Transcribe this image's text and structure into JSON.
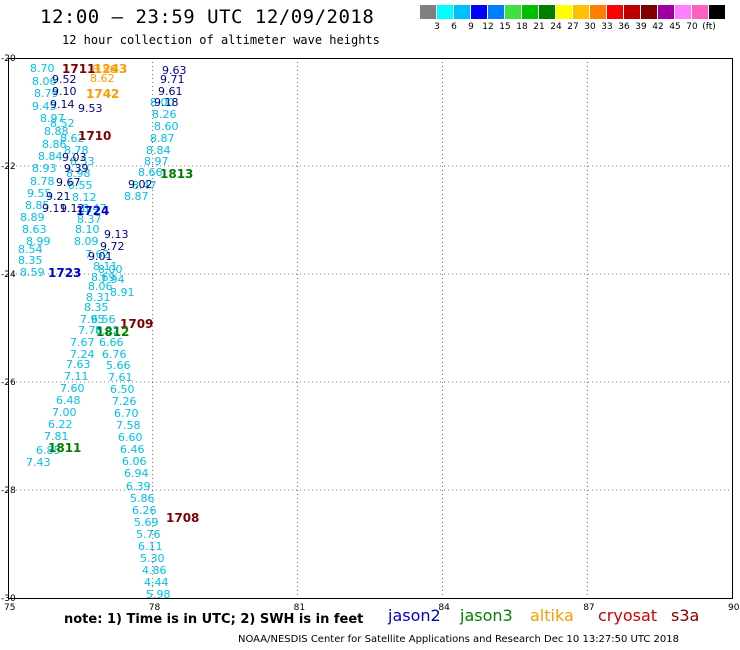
{
  "header": {
    "title": "12:00 – 23:59 UTC 12/09/2018",
    "subtitle": "12 hour collection of altimeter wave heights"
  },
  "legend": {
    "colors": [
      "#808080",
      "#00ffff",
      "#00bfff",
      "#0000ff",
      "#0080ff",
      "#40e040",
      "#00c000",
      "#008000",
      "#ffff00",
      "#ffc000",
      "#ff8000",
      "#ff0000",
      "#c00000",
      "#800000",
      "#a000a0",
      "#ff80ff",
      "#ff60c0",
      "#000000"
    ],
    "labels": [
      "3",
      "6",
      "9",
      "12",
      "15",
      "18",
      "21",
      "24",
      "27",
      "30",
      "33",
      "36",
      "39",
      "42",
      "45",
      "70",
      "(ft)"
    ]
  },
  "map": {
    "y_ticks": [
      "-20",
      "-22",
      "-24",
      "-26",
      "-28",
      "-30"
    ],
    "x_ticks": [
      "75",
      "78",
      "81",
      "84",
      "87",
      "90"
    ]
  },
  "tracks": [
    {
      "label": "1711",
      "color": "#800000"
    },
    {
      "label": "1742",
      "color": "#ff9900"
    },
    {
      "label": "1243",
      "color": "#ff9900"
    },
    {
      "label": "1710",
      "color": "#800000"
    },
    {
      "label": "1813",
      "color": "#008000"
    },
    {
      "label": "1724",
      "color": "#0000cc"
    },
    {
      "label": "1723",
      "color": "#0000cc"
    },
    {
      "label": "1709",
      "color": "#800000"
    },
    {
      "label": "1812",
      "color": "#008000"
    },
    {
      "label": "1811",
      "color": "#008000"
    },
    {
      "label": "1708",
      "color": "#800000"
    }
  ],
  "waves": {
    "cyan": [
      "8.70",
      "8.06",
      "8.79",
      "9.45",
      "8.97",
      "8.88",
      "8.86",
      "8.84",
      "8.93",
      "8.78",
      "9.55",
      "8.85",
      "8.89",
      "8.63",
      "8.99",
      "8.54",
      "8.35",
      "8.59",
      "8.52",
      "8.62",
      "8.78",
      "8.53",
      "8.98",
      "8.55",
      "8.12",
      "8.47",
      "8.37",
      "8.10",
      "8.09",
      "7.62",
      "8.11",
      "7.94",
      "8.91",
      "8.00",
      "8.69",
      "8.06",
      "8.31",
      "8.35",
      "7.95",
      "7.76",
      "7.67",
      "7.24",
      "7.63",
      "7.11",
      "7.60",
      "6.48",
      "7.00",
      "6.22",
      "7.81",
      "6.85",
      "7.43",
      "6.56",
      "8.22",
      "6.66",
      "6.76",
      "5.66",
      "7.61",
      "6.50",
      "7.26",
      "6.70",
      "7.58",
      "6.60",
      "6.46",
      "6.06",
      "6.94",
      "6.39",
      "5.86",
      "6.26",
      "5.69",
      "5.76",
      "6.11",
      "5.30",
      "4.86",
      "4.44",
      "5.98",
      "8.00",
      "8.26",
      "8.60",
      "8.87",
      "8.84",
      "8.97",
      "8.66",
      "8.47",
      "8.87"
    ],
    "navy": [
      "9.52",
      "9.10",
      "9.14",
      "9.53",
      "9.03",
      "9.39",
      "9.63",
      "9.71",
      "9.61",
      "9.18",
      "9.02",
      "9.13",
      "9.72",
      "9.01",
      "9.11",
      "9.12",
      "9.67",
      "9.21"
    ],
    "orange": [
      "8.62",
      "8.56"
    ]
  },
  "footer": {
    "note": "note: 1) Time is in UTC; 2) SWH is in feet",
    "satellites": [
      {
        "name": "jason2",
        "color": "#0000cc"
      },
      {
        "name": "jason3",
        "color": "#008000"
      },
      {
        "name": "altika",
        "color": "#ff9900"
      },
      {
        "name": "cryosat",
        "color": "#cc0000"
      },
      {
        "name": "s3a",
        "color": "#800000"
      }
    ],
    "credit": "NOAA/NESDIS Center for Satellite Applications and Research    Dec 10 13:27:50 UTC 2018"
  }
}
